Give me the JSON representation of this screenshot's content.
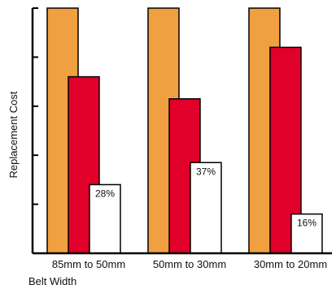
{
  "chart_data": {
    "type": "bar",
    "title": "",
    "xlabel": "Belt Width",
    "ylabel": "Replacement Cost",
    "categories": [
      "85mm to 50mm",
      "50mm to 30mm",
      "30mm to 20mm"
    ],
    "series": [
      {
        "values": [
          100,
          100,
          100
        ],
        "color": "#f0a040"
      },
      {
        "values": [
          72,
          63,
          84
        ],
        "color": "#e0002a"
      },
      {
        "values": [
          28,
          37,
          16
        ],
        "color": "#ffffff"
      }
    ],
    "data_labels": [
      "28%",
      "37%",
      "16%"
    ],
    "ylim": [
      0,
      100
    ],
    "y_tick_count": 6,
    "grid": false,
    "legend": "none",
    "colors": {
      "axis": "#000000",
      "background": "#ffffff"
    }
  }
}
